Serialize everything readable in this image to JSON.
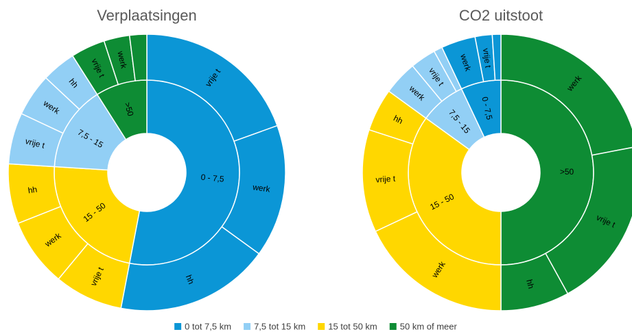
{
  "chart_data": [
    {
      "type": "sunburst",
      "title": "Verplaatsingen",
      "groups": [
        {
          "name": "0 - 7,5",
          "color": "#0b96d6",
          "children": [
            {
              "name": "vrije t",
              "value": 19.5
            },
            {
              "name": "werk",
              "value": 15.5
            },
            {
              "name": "hh",
              "value": 18
            }
          ]
        },
        {
          "name": "15 - 50",
          "color": "#ffd700",
          "children": [
            {
              "name": "vrije t",
              "value": 8
            },
            {
              "name": "werk",
              "value": 8
            },
            {
              "name": "hh",
              "value": 7
            }
          ]
        },
        {
          "name": "7,5 - 15",
          "color": "#92cff5",
          "children": [
            {
              "name": "vrije t",
              "value": 6
            },
            {
              "name": "werk",
              "value": 5
            },
            {
              "name": "hh",
              "value": 4
            }
          ]
        },
        {
          "name": ">50",
          "color": "#0e8c34",
          "children": [
            {
              "name": "vrije t",
              "value": 4
            },
            {
              "name": "werk",
              "value": 3
            },
            {
              "name": null,
              "value": 2
            }
          ]
        }
      ]
    },
    {
      "type": "sunburst",
      "title": "CO2 uitstoot",
      "groups": [
        {
          "name": ">50",
          "color": "#0e8c34",
          "children": [
            {
              "name": "werk",
              "value": 22
            },
            {
              "name": "vrije t",
              "value": 20
            },
            {
              "name": "hh",
              "value": 8
            }
          ]
        },
        {
          "name": "15 - 50",
          "color": "#ffd700",
          "children": [
            {
              "name": "werk",
              "value": 18
            },
            {
              "name": "vrije t",
              "value": 12
            },
            {
              "name": "hh",
              "value": 5
            }
          ]
        },
        {
          "name": "7,5 - 15",
          "color": "#92cff5",
          "children": [
            {
              "name": "werk",
              "value": 4
            },
            {
              "name": "vrije t",
              "value": 3
            },
            {
              "name": null,
              "value": 1
            }
          ]
        },
        {
          "name": "0 - 7,5",
          "color": "#0b96d6",
          "children": [
            {
              "name": "werk",
              "value": 4
            },
            {
              "name": "vrije t",
              "value": 2
            },
            {
              "name": null,
              "value": 1
            }
          ]
        }
      ]
    }
  ],
  "legend": [
    {
      "label": "0 tot 7,5 km",
      "color": "#0b96d6"
    },
    {
      "label": "7,5 tot 15 km",
      "color": "#92cff5"
    },
    {
      "label": "15 tot 50 km",
      "color": "#ffd700"
    },
    {
      "label": "50 km of meer",
      "color": "#0e8c34"
    }
  ]
}
